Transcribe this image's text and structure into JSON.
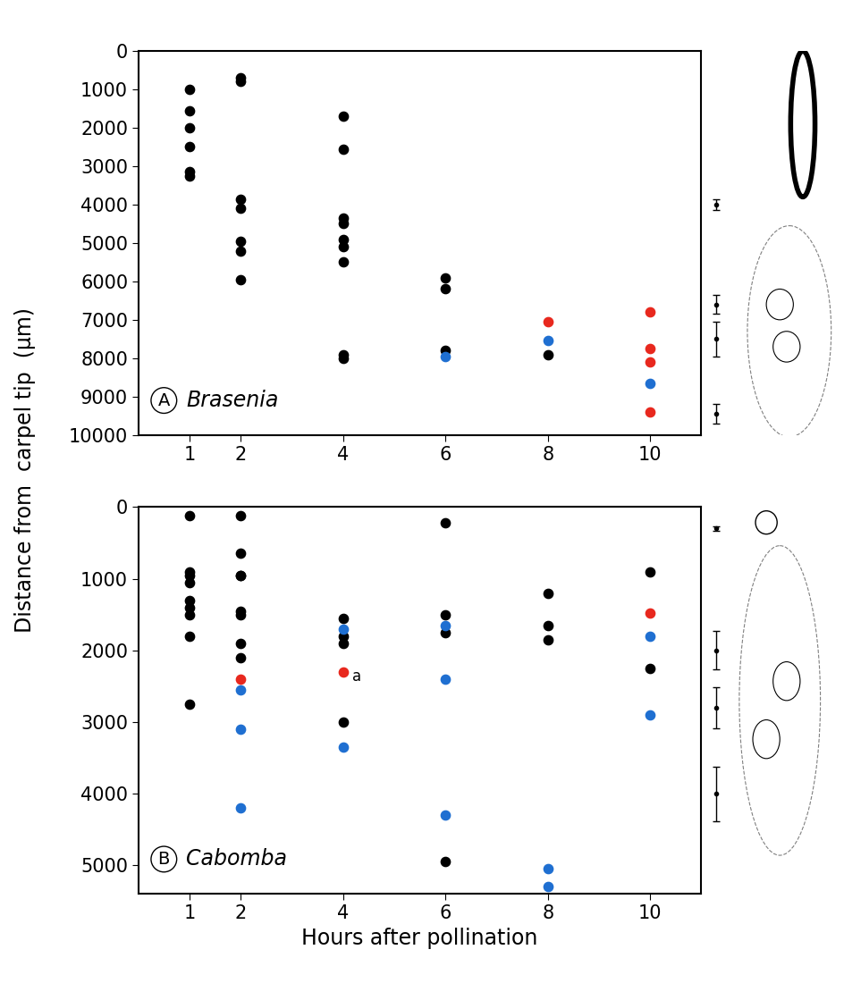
{
  "ylabel": "Distance from  carpel tip  (µm)",
  "chart_data": [
    {
      "type": "scatter",
      "panel_label": "A",
      "title": "Brasenia",
      "xlim": [
        0,
        11
      ],
      "xticks": [
        1,
        2,
        4,
        6,
        8,
        10
      ],
      "ylim": [
        10000,
        0
      ],
      "yticks": [
        0,
        1000,
        2000,
        3000,
        4000,
        5000,
        6000,
        7000,
        8000,
        9000,
        10000
      ],
      "series": [
        {
          "color": "#000000",
          "marker": "o",
          "x": [
            1,
            1,
            1,
            1,
            1,
            1,
            2,
            2,
            2,
            2,
            2,
            2,
            2,
            4,
            4,
            4,
            4,
            4,
            4,
            4,
            4,
            4,
            6,
            6,
            6,
            8
          ],
          "values": [
            1000,
            1550,
            2000,
            2500,
            3150,
            3250,
            700,
            800,
            3850,
            4100,
            4950,
            5200,
            5950,
            1700,
            2550,
            4350,
            4500,
            4900,
            5100,
            5500,
            7900,
            8000,
            5900,
            6200,
            7800,
            7900
          ]
        },
        {
          "color": "#1f6fd1",
          "marker": "o",
          "x": [
            6,
            8,
            10
          ],
          "values": [
            7950,
            7550,
            8650
          ]
        },
        {
          "color": "#e8281e",
          "marker": "o",
          "x": [
            8,
            10,
            10,
            10,
            10
          ],
          "values": [
            7050,
            6800,
            7750,
            8100,
            9400
          ]
        }
      ],
      "carpel_markers": {
        "values": [
          4000,
          6600,
          7500,
          9450
        ],
        "errors": [
          150,
          250,
          450,
          250
        ]
      }
    },
    {
      "type": "scatter",
      "panel_label": "B",
      "title": "Cabomba",
      "xlabel": "Hours after pollination",
      "xlim": [
        0,
        11
      ],
      "xticks": [
        1,
        2,
        4,
        6,
        8,
        10
      ],
      "ylim": [
        5400,
        0
      ],
      "yticks": [
        0,
        1000,
        2000,
        3000,
        4000,
        5000
      ],
      "series": [
        {
          "color": "#000000",
          "marker": "o",
          "x": [
            1,
            1,
            1,
            1,
            1,
            1,
            1,
            1,
            1,
            2,
            2,
            2,
            2,
            2,
            2,
            2,
            2,
            4,
            4,
            4,
            4,
            6,
            6,
            6,
            6,
            8,
            8,
            8,
            10,
            10
          ],
          "values": [
            120,
            900,
            950,
            1050,
            1300,
            1400,
            1500,
            1800,
            2750,
            120,
            650,
            950,
            950,
            1450,
            1500,
            1900,
            2100,
            1550,
            1800,
            1900,
            3000,
            220,
            1500,
            1750,
            4950,
            1200,
            1650,
            1850,
            900,
            2250
          ]
        },
        {
          "color": "#1f6fd1",
          "marker": "o",
          "x": [
            2,
            2,
            2,
            4,
            4,
            6,
            6,
            6,
            8,
            8,
            10,
            10
          ],
          "values": [
            2550,
            3100,
            4200,
            1700,
            3350,
            1650,
            2400,
            4300,
            5050,
            5300,
            1800,
            2900
          ]
        },
        {
          "color": "#e8281e",
          "marker": "o",
          "x": [
            2,
            4,
            10
          ],
          "values": [
            2400,
            2300,
            1480
          ]
        }
      ],
      "annotations": [
        {
          "text": "a",
          "x": 4,
          "y": 2300
        }
      ],
      "carpel_markers": {
        "values": [
          300,
          2000,
          2800,
          4000
        ],
        "errors": [
          30,
          270,
          290,
          380
        ]
      }
    }
  ]
}
